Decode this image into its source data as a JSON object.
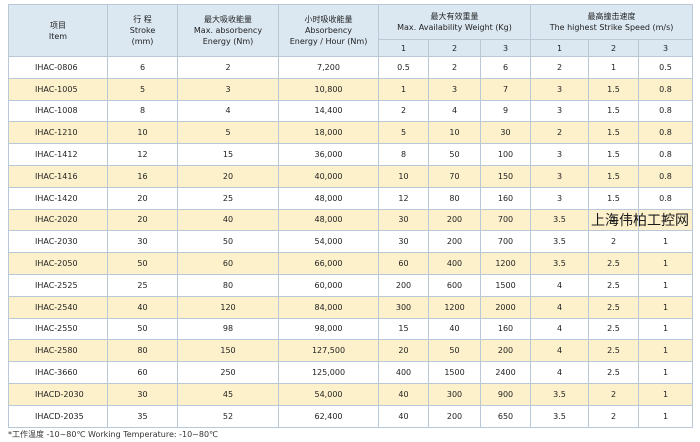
{
  "table": {
    "header": [
      [
        "项目",
        "Item"
      ],
      [
        "行 程",
        "Stroke",
        "(mm)"
      ],
      [
        "最大吸收能量",
        "Max. absorbency",
        "Energy   (Nm)"
      ],
      [
        "小时吸收能量",
        "Absorbency",
        "Energy / Hour  (Nm)"
      ],
      [
        "最大有效重量",
        "Max. Availability Weight  (Kg)"
      ],
      [
        "最高撞击速度",
        "The highest Strike Speed  (m/s)"
      ]
    ],
    "subheader": [
      "1",
      "2",
      "3",
      "1",
      "2",
      "3"
    ],
    "rows": [
      [
        "IHAC-0806",
        "6",
        "2",
        "7,200",
        "0.5",
        "2",
        "6",
        "2",
        "1",
        "0.5"
      ],
      [
        "IHAC-1005",
        "5",
        "3",
        "10,800",
        "1",
        "3",
        "7",
        "3",
        "1.5",
        "0.8"
      ],
      [
        "IHAC-1008",
        "8",
        "4",
        "14,400",
        "2",
        "4",
        "9",
        "3",
        "1.5",
        "0.8"
      ],
      [
        "IHAC-1210",
        "10",
        "5",
        "18,000",
        "5",
        "10",
        "30",
        "2",
        "1.5",
        "0.8"
      ],
      [
        "IHAC-1412",
        "12",
        "15",
        "36,000",
        "8",
        "50",
        "100",
        "3",
        "1.5",
        "0.8"
      ],
      [
        "IHAC-1416",
        "16",
        "20",
        "40,000",
        "10",
        "70",
        "150",
        "3",
        "1.5",
        "0.8"
      ],
      [
        "IHAC-1420",
        "20",
        "25",
        "48,000",
        "12",
        "80",
        "160",
        "3",
        "1.5",
        "0.8"
      ],
      [
        "IHAC-2020",
        "20",
        "40",
        "48,000",
        "30",
        "200",
        "700",
        "3.5",
        "2",
        "1"
      ],
      [
        "IHAC-2030",
        "30",
        "50",
        "54,000",
        "30",
        "200",
        "700",
        "3.5",
        "2",
        "1"
      ],
      [
        "IHAC-2050",
        "50",
        "60",
        "66,000",
        "60",
        "400",
        "1200",
        "3.5",
        "2.5",
        "1"
      ],
      [
        "IHAC-2525",
        "25",
        "80",
        "60,000",
        "200",
        "600",
        "1500",
        "4",
        "2.5",
        "1"
      ],
      [
        "IHAC-2540",
        "40",
        "120",
        "84,000",
        "300",
        "1200",
        "2000",
        "4",
        "2.5",
        "1"
      ],
      [
        "IHAC-2550",
        "50",
        "98",
        "98,000",
        "15",
        "40",
        "160",
        "4",
        "2.5",
        "1"
      ],
      [
        "IHAC-2580",
        "80",
        "150",
        "127,500",
        "20",
        "50",
        "200",
        "4",
        "2.5",
        "1"
      ],
      [
        "IHAC-3660",
        "60",
        "250",
        "125,000",
        "400",
        "1500",
        "2400",
        "4",
        "2.5",
        "1"
      ],
      [
        "IHACD-2030",
        "30",
        "45",
        "54,000",
        "40",
        "300",
        "900",
        "3.5",
        "2",
        "1"
      ],
      [
        "IHACD-2035",
        "35",
        "52",
        "62,400",
        "40",
        "200",
        "650",
        "3.5",
        "2",
        "1"
      ]
    ]
  },
  "watermark": "上海伟柏工控网",
  "footer": "*工作温度 -10~80℃   Working Temperature: -10~80℃"
}
